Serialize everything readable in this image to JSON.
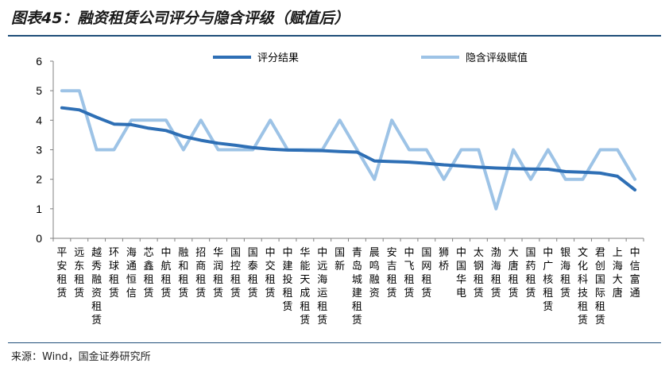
{
  "title": "图表45：融资租赁公司评分与隐含评级（赋值后）",
  "source": "来源：Wind，国金证券研究所",
  "chart_data": {
    "type": "line",
    "ylim": [
      0,
      6
    ],
    "yticks": [
      0,
      1,
      2,
      3,
      4,
      5,
      6
    ],
    "legend_position": "top",
    "categories": [
      "平安租赁",
      "远东租赁",
      "越秀融资租赁",
      "环球租赁",
      "海通恒信",
      "芯鑫租赁",
      "中航租赁",
      "融和租赁",
      "招商租赁",
      "华润租赁",
      "国控租赁",
      "国泰租赁",
      "中交租赁",
      "中建投租赁",
      "华能天成租赁",
      "中远海运租赁",
      "国新",
      "青岛城建租赁",
      "晨鸣融资",
      "安吉租赁",
      "中飞租赁",
      "国网租赁",
      "狮桥",
      "中国华电",
      "太钢租赁",
      "渤海租赁",
      "大唐租赁",
      "国药租赁",
      "中广核租赁",
      "银海租赁",
      "文化科技租赁",
      "君创国际租赁",
      "上海大唐",
      "中信富通"
    ],
    "series": [
      {
        "name": "评分结果",
        "color": "#2e6fb5",
        "values": [
          4.42,
          4.35,
          4.1,
          3.87,
          3.85,
          3.73,
          3.65,
          3.45,
          3.32,
          3.22,
          3.15,
          3.07,
          3.02,
          2.99,
          2.98,
          2.97,
          2.94,
          2.92,
          2.62,
          2.6,
          2.58,
          2.54,
          2.49,
          2.45,
          2.41,
          2.38,
          2.36,
          2.35,
          2.34,
          2.26,
          2.24,
          2.21,
          2.1,
          1.64
        ]
      },
      {
        "name": "隐含评级赋值",
        "color": "#9dc3e6",
        "values": [
          5,
          5,
          3,
          3,
          4,
          4,
          4,
          3,
          4,
          3,
          3,
          3,
          4,
          3,
          3,
          3,
          4,
          3,
          2,
          4,
          3,
          3,
          2,
          3,
          3,
          1,
          3,
          2,
          3,
          2,
          2,
          3,
          3,
          2
        ]
      }
    ]
  }
}
